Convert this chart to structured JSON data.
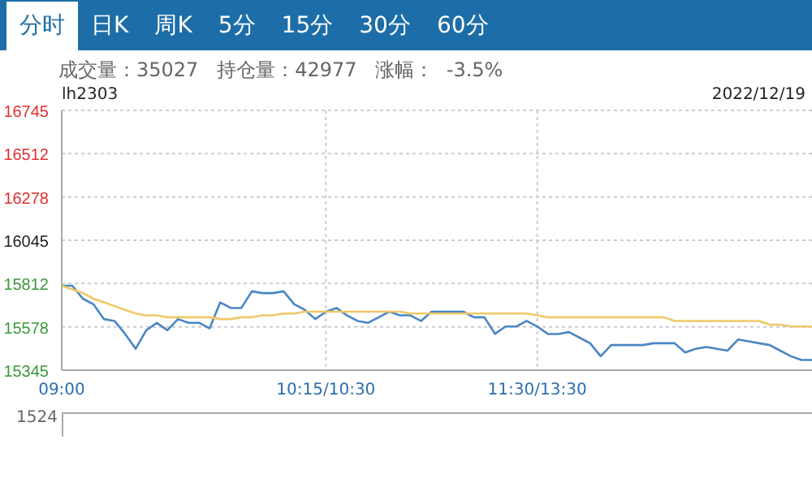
{
  "chart_data": {
    "type": "line",
    "title": "lh2303",
    "subtitle": "成交量：35027   持仓量：42977   涨幅：  -3.5%",
    "annotations": [
      "分时",
      "日K",
      "周K",
      "5分",
      "15分",
      "30分",
      "60分",
      "2022/12/19",
      "1524"
    ],
    "categories": [
      "09:00",
      null,
      null,
      null,
      null,
      null,
      null,
      null,
      null,
      null,
      null,
      null,
      null,
      null,
      null,
      null,
      null,
      null,
      null,
      null,
      null,
      null,
      null,
      null,
      null,
      "10:15/10:30",
      null,
      null,
      null,
      null,
      null,
      null,
      null,
      null,
      null,
      null,
      null,
      null,
      null,
      null,
      null,
      null,
      null,
      null,
      null,
      "11:30/13:30",
      null,
      null,
      null,
      null,
      null,
      null,
      null,
      null,
      null,
      null,
      null,
      null,
      null,
      null,
      null,
      null,
      null,
      null,
      null,
      null,
      null,
      null,
      null,
      null,
      null,
      null
    ],
    "ylim": [
      15345,
      16745
    ],
    "yticks": [
      15345,
      15578,
      15812,
      16045,
      16278,
      16512,
      16745
    ],
    "grid": true,
    "legend": false,
    "marker": "none",
    "line_style": "solid",
    "series": [
      {
        "color": "#4a86c5",
        "values": [
          15800,
          15800,
          15730,
          15700,
          15620,
          15610,
          15540,
          15460,
          15560,
          15600,
          15560,
          15620,
          15600,
          15600,
          15570,
          15710,
          15680,
          15680,
          15770,
          15760,
          15760,
          15770,
          15700,
          15670,
          15620,
          15660,
          15680,
          15640,
          15610,
          15600,
          15630,
          15660,
          15640,
          15640,
          15610,
          15660,
          15660,
          15660,
          15660,
          15630,
          15630,
          15540,
          15580,
          15580,
          15610,
          15580,
          15540,
          15540,
          15550,
          15520,
          15490,
          15420,
          15480,
          15480,
          15480,
          15480,
          15490,
          15490,
          15490,
          15440,
          15460,
          15470,
          15460,
          15450,
          15510,
          15500,
          15490,
          15480,
          15450,
          15420,
          15400,
          15400
        ]
      },
      {
        "color": "#f0c868",
        "values": [
          15800,
          15780,
          15760,
          15730,
          15710,
          15690,
          15670,
          15650,
          15640,
          15640,
          15630,
          15630,
          15630,
          15630,
          15630,
          15620,
          15620,
          15630,
          15630,
          15640,
          15640,
          15650,
          15650,
          15660,
          15660,
          15660,
          15660,
          15660,
          15660,
          15660,
          15660,
          15660,
          15660,
          15650,
          15650,
          15650,
          15650,
          15650,
          15650,
          15650,
          15650,
          15650,
          15650,
          15650,
          15650,
          15640,
          15630,
          15630,
          15630,
          15630,
          15630,
          15630,
          15630,
          15630,
          15630,
          15630,
          15630,
          15630,
          15610,
          15610,
          15610,
          15610,
          15610,
          15610,
          15610,
          15610,
          15610,
          15590,
          15590,
          15580,
          15580,
          15580
        ]
      }
    ]
  }
}
